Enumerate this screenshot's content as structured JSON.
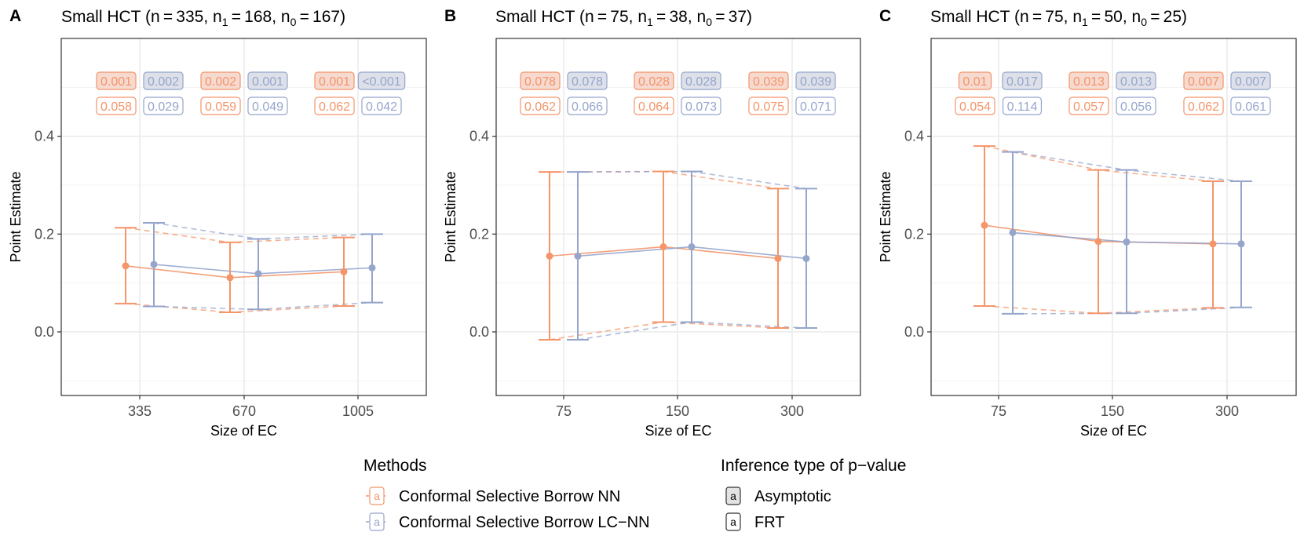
{
  "figure": {
    "legend": {
      "methods_title": "Methods",
      "inference_title": "Inference type of p−value",
      "methods": [
        {
          "key": "nn",
          "label": "Conformal Selective Borrow NN",
          "color": "#F4956A"
        },
        {
          "key": "lcnn",
          "label": "Conformal Selective Borrow LC−NN",
          "color": "#95A5CC"
        }
      ],
      "inference": [
        {
          "key": "asym",
          "label": "Asymptotic"
        },
        {
          "key": "frt",
          "label": "FRT"
        }
      ],
      "glyph": "a"
    },
    "colors": {
      "nn": "#F4956A",
      "lcnn": "#95A5CC",
      "nn_fill": "#F6D9CF",
      "lcnn_fill": "#DDE0E9",
      "grid": "#EBEBEB",
      "border": "#333333"
    }
  },
  "chart_data": [
    {
      "type": "errorbar",
      "panel": "A",
      "title": "Small HCT (n = 335, n1 = 168, n0 = 167)",
      "title_parts": {
        "pre": "Small HCT (n = 335, n",
        "s1": "1",
        "mid": " = 168, n",
        "s0": "0",
        "post": " = 167)"
      },
      "xlabel": "Size of EC",
      "ylabel": "Point Estimate",
      "categories": [
        "335",
        "670",
        "1005"
      ],
      "ylim": [
        -0.13,
        0.6
      ],
      "yticks": [
        0.0,
        0.2,
        0.4
      ],
      "ytick_labels": [
        "0.0",
        "0.2",
        "0.4"
      ],
      "series": [
        {
          "name": "Conformal Selective Borrow NN",
          "key": "nn",
          "estimate": [
            0.135,
            0.111,
            0.123
          ],
          "lower": [
            0.058,
            0.04,
            0.053
          ],
          "upper": [
            0.213,
            0.183,
            0.193
          ],
          "p_asymptotic": [
            "0.001",
            "0.002",
            "0.001"
          ],
          "p_frt": [
            "0.058",
            "0.059",
            "0.062"
          ]
        },
        {
          "name": "Conformal Selective Borrow LC−NN",
          "key": "lcnn",
          "estimate": [
            0.138,
            0.119,
            0.131
          ],
          "lower": [
            0.052,
            0.046,
            0.06
          ],
          "upper": [
            0.223,
            0.19,
            0.2
          ],
          "p_asymptotic": [
            "0.002",
            "0.001",
            "<0.001"
          ],
          "p_frt": [
            "0.029",
            "0.049",
            "0.042"
          ]
        }
      ]
    },
    {
      "type": "errorbar",
      "panel": "B",
      "title": "Small HCT (n = 75, n1 = 38, n0 = 37)",
      "title_parts": {
        "pre": "Small HCT (n = 75, n",
        "s1": "1",
        "mid": " = 38, n",
        "s0": "0",
        "post": " = 37)"
      },
      "xlabel": "Size of EC",
      "ylabel": "Point Estimate",
      "categories": [
        "75",
        "150",
        "300"
      ],
      "ylim": [
        -0.13,
        0.6
      ],
      "yticks": [
        0.0,
        0.2,
        0.4
      ],
      "ytick_labels": [
        "0.0",
        "0.2",
        "0.4"
      ],
      "series": [
        {
          "name": "Conformal Selective Borrow NN",
          "key": "nn",
          "estimate": [
            0.155,
            0.174,
            0.15
          ],
          "lower": [
            -0.016,
            0.02,
            0.008
          ],
          "upper": [
            0.327,
            0.328,
            0.293
          ],
          "p_asymptotic": [
            "0.078",
            "0.028",
            "0.039"
          ],
          "p_frt": [
            "0.062",
            "0.064",
            "0.075"
          ]
        },
        {
          "name": "Conformal Selective Borrow LC−NN",
          "key": "lcnn",
          "estimate": [
            0.155,
            0.174,
            0.15
          ],
          "lower": [
            -0.016,
            0.02,
            0.008
          ],
          "upper": [
            0.327,
            0.328,
            0.293
          ],
          "p_asymptotic": [
            "0.078",
            "0.028",
            "0.039"
          ],
          "p_frt": [
            "0.066",
            "0.073",
            "0.071"
          ]
        }
      ]
    },
    {
      "type": "errorbar",
      "panel": "C",
      "title": "Small HCT (n = 75, n1 = 50, n0 = 25)",
      "title_parts": {
        "pre": "Small HCT (n = 75, n",
        "s1": "1",
        "mid": " = 50, n",
        "s0": "0",
        "post": " = 25)"
      },
      "xlabel": "Size of EC",
      "ylabel": "Point Estimate",
      "categories": [
        "75",
        "150",
        "300"
      ],
      "ylim": [
        -0.13,
        0.6
      ],
      "yticks": [
        0.0,
        0.2,
        0.4
      ],
      "ytick_labels": [
        "0.0",
        "0.2",
        "0.4"
      ],
      "series": [
        {
          "name": "Conformal Selective Borrow NN",
          "key": "nn",
          "estimate": [
            0.218,
            0.185,
            0.18
          ],
          "lower": [
            0.053,
            0.038,
            0.049
          ],
          "upper": [
            0.38,
            0.331,
            0.308
          ],
          "p_asymptotic": [
            "0.01",
            "0.013",
            "0.007"
          ],
          "p_frt": [
            "0.054",
            "0.057",
            "0.062"
          ]
        },
        {
          "name": "Conformal Selective Borrow LC−NN",
          "key": "lcnn",
          "estimate": [
            0.203,
            0.184,
            0.18
          ],
          "lower": [
            0.037,
            0.038,
            0.05
          ],
          "upper": [
            0.368,
            0.331,
            0.308
          ],
          "p_asymptotic": [
            "0.017",
            "0.013",
            "0.007"
          ],
          "p_frt": [
            "0.114",
            "0.056",
            "0.061"
          ]
        }
      ]
    }
  ]
}
